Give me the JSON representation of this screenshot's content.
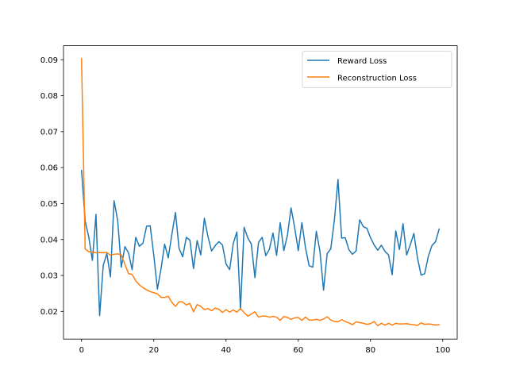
{
  "chart_data": {
    "type": "line",
    "title": "",
    "xlabel": "",
    "ylabel": "",
    "xlim": [
      -5,
      104
    ],
    "ylim": [
      0.0123,
      0.0939
    ],
    "xticks": [
      0,
      20,
      40,
      60,
      80,
      100
    ],
    "yticks": [
      0.02,
      0.03,
      0.04,
      0.05,
      0.06,
      0.07,
      0.08,
      0.09
    ],
    "xtick_labels": [
      "0",
      "20",
      "40",
      "60",
      "80",
      "100"
    ],
    "ytick_labels": [
      "0.02",
      "0.03",
      "0.04",
      "0.05",
      "0.06",
      "0.07",
      "0.08",
      "0.09"
    ],
    "grid": false,
    "legend": "top-right",
    "series": [
      {
        "name": "Reward Loss",
        "color": "#1f77b4",
        "x": [
          0,
          1,
          2,
          3,
          4,
          5,
          6,
          7,
          8,
          9,
          10,
          11,
          12,
          13,
          14,
          15,
          16,
          17,
          18,
          19,
          20,
          21,
          22,
          23,
          24,
          25,
          26,
          27,
          28,
          29,
          30,
          31,
          32,
          33,
          34,
          35,
          36,
          37,
          38,
          39,
          40,
          41,
          42,
          43,
          44,
          45,
          46,
          47,
          48,
          49,
          50,
          51,
          52,
          53,
          54,
          55,
          56,
          57,
          58,
          59,
          60,
          61,
          62,
          63,
          64,
          65,
          66,
          67,
          68,
          69,
          70,
          71,
          72,
          73,
          74,
          75,
          76,
          77,
          78,
          79,
          80,
          81,
          82,
          83,
          84,
          85,
          86,
          87,
          88,
          89,
          90,
          91,
          92,
          93,
          94,
          95,
          96,
          97,
          98,
          99
        ],
        "values": [
          0.0592,
          0.0451,
          0.0407,
          0.0342,
          0.047,
          0.0188,
          0.0328,
          0.0361,
          0.0296,
          0.0508,
          0.0453,
          0.0323,
          0.038,
          0.0363,
          0.0316,
          0.0406,
          0.0381,
          0.039,
          0.0437,
          0.0438,
          0.0356,
          0.0262,
          0.0318,
          0.0387,
          0.0349,
          0.0414,
          0.0475,
          0.0375,
          0.0352,
          0.0406,
          0.0398,
          0.0319,
          0.0397,
          0.0357,
          0.0459,
          0.0408,
          0.0368,
          0.0383,
          0.0394,
          0.0385,
          0.0332,
          0.0316,
          0.0389,
          0.0421,
          0.0205,
          0.0434,
          0.0405,
          0.0387,
          0.0294,
          0.0392,
          0.0406,
          0.0355,
          0.0373,
          0.0418,
          0.0356,
          0.0447,
          0.0369,
          0.0412,
          0.0488,
          0.0433,
          0.0369,
          0.0447,
          0.0377,
          0.0327,
          0.0323,
          0.0423,
          0.0367,
          0.0259,
          0.0361,
          0.0374,
          0.0454,
          0.0567,
          0.0404,
          0.0405,
          0.0372,
          0.0359,
          0.0368,
          0.0455,
          0.0436,
          0.0431,
          0.0405,
          0.0385,
          0.037,
          0.0384,
          0.0367,
          0.0357,
          0.0302,
          0.0424,
          0.0372,
          0.0444,
          0.0357,
          0.0385,
          0.0417,
          0.0349,
          0.0301,
          0.0305,
          0.0353,
          0.0383,
          0.0394,
          0.0429
        ]
      },
      {
        "name": "Reconstruction Loss",
        "color": "#ff7f0e",
        "x": [
          0,
          1,
          2,
          3,
          4,
          5,
          6,
          7,
          8,
          9,
          10,
          11,
          12,
          13,
          14,
          15,
          16,
          17,
          18,
          19,
          20,
          21,
          22,
          23,
          24,
          25,
          26,
          27,
          28,
          29,
          30,
          31,
          32,
          33,
          34,
          35,
          36,
          37,
          38,
          39,
          40,
          41,
          42,
          43,
          44,
          45,
          46,
          47,
          48,
          49,
          50,
          51,
          52,
          53,
          54,
          55,
          56,
          57,
          58,
          59,
          60,
          61,
          62,
          63,
          64,
          65,
          66,
          67,
          68,
          69,
          70,
          71,
          72,
          73,
          74,
          75,
          76,
          77,
          78,
          79,
          80,
          81,
          82,
          83,
          84,
          85,
          86,
          87,
          88,
          89,
          90,
          91,
          92,
          93,
          94,
          95,
          96,
          97,
          98,
          99
        ],
        "values": [
          0.0903,
          0.0374,
          0.0366,
          0.0365,
          0.0363,
          0.0364,
          0.0363,
          0.0364,
          0.0356,
          0.0359,
          0.036,
          0.0357,
          0.0331,
          0.0305,
          0.0303,
          0.0285,
          0.0274,
          0.0266,
          0.026,
          0.0255,
          0.0252,
          0.0249,
          0.0239,
          0.0239,
          0.0242,
          0.0225,
          0.0214,
          0.0227,
          0.0226,
          0.0218,
          0.0222,
          0.0199,
          0.0219,
          0.0214,
          0.0205,
          0.0208,
          0.0202,
          0.0209,
          0.0206,
          0.0197,
          0.0205,
          0.0198,
          0.0204,
          0.0198,
          0.0208,
          0.0197,
          0.0187,
          0.0193,
          0.0199,
          0.0184,
          0.0187,
          0.0187,
          0.0184,
          0.0186,
          0.0184,
          0.0175,
          0.0186,
          0.0183,
          0.0178,
          0.0182,
          0.0183,
          0.0175,
          0.0184,
          0.0176,
          0.0176,
          0.0178,
          0.0175,
          0.0179,
          0.0185,
          0.0176,
          0.0172,
          0.0171,
          0.0177,
          0.0172,
          0.0168,
          0.0163,
          0.0171,
          0.0169,
          0.0167,
          0.0164,
          0.0166,
          0.0172,
          0.016,
          0.0167,
          0.0162,
          0.0167,
          0.0162,
          0.0167,
          0.0165,
          0.0165,
          0.0166,
          0.0164,
          0.0163,
          0.0161,
          0.0168,
          0.0164,
          0.0165,
          0.0164,
          0.0162,
          0.0163
        ]
      }
    ]
  }
}
